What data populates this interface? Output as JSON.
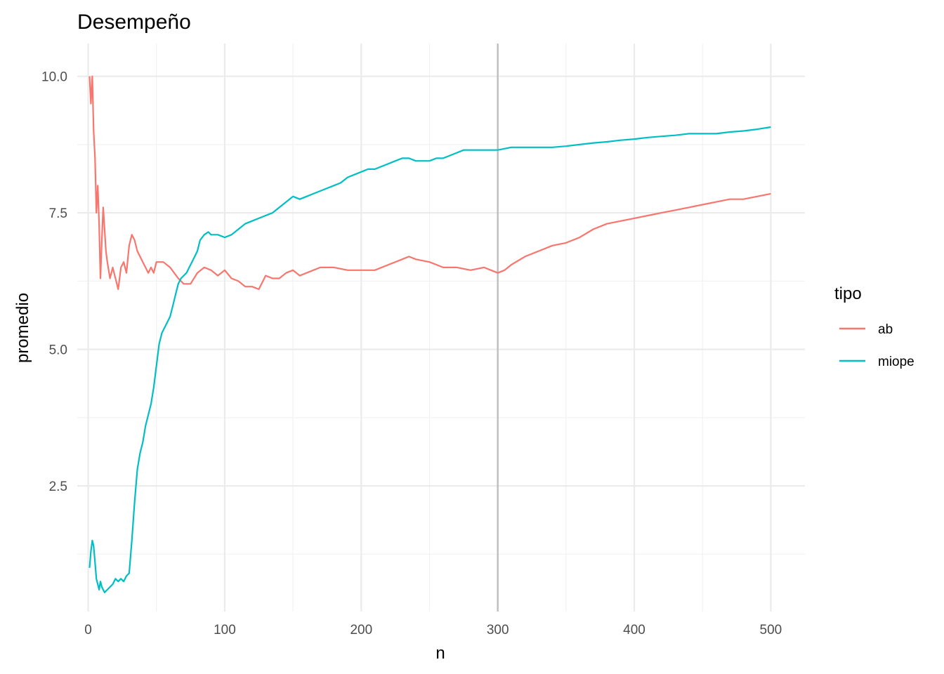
{
  "chart_data": {
    "type": "line",
    "title": "Desempeño",
    "xlabel": "n",
    "ylabel": "promedio",
    "xlim": [
      -8,
      525
    ],
    "ylim": [
      0.2,
      10.6
    ],
    "x_ticks": [
      0,
      100,
      200,
      300,
      400,
      500
    ],
    "x_tick_labels": [
      "0",
      "100",
      "200",
      "300",
      "400",
      "500"
    ],
    "y_ticks": [
      2.5,
      5.0,
      7.5,
      10.0
    ],
    "y_tick_labels": [
      "2.5",
      "5.0",
      "7.5",
      "10.0"
    ],
    "grid": true,
    "reference_line": {
      "x": 300,
      "color": "#bebebe"
    },
    "legend": {
      "title": "tipo",
      "placement": "right"
    },
    "series": [
      {
        "name": "ab",
        "color": "#F8766D",
        "points": [
          [
            1,
            10.0
          ],
          [
            2,
            9.5
          ],
          [
            3,
            10.0
          ],
          [
            4,
            9.0
          ],
          [
            5,
            8.5
          ],
          [
            6,
            7.5
          ],
          [
            7,
            8.0
          ],
          [
            8,
            7.3
          ],
          [
            9,
            6.3
          ],
          [
            10,
            7.0
          ],
          [
            11,
            7.6
          ],
          [
            12,
            7.2
          ],
          [
            13,
            6.8
          ],
          [
            14,
            6.6
          ],
          [
            16,
            6.3
          ],
          [
            18,
            6.5
          ],
          [
            20,
            6.3
          ],
          [
            22,
            6.1
          ],
          [
            24,
            6.5
          ],
          [
            26,
            6.6
          ],
          [
            28,
            6.4
          ],
          [
            30,
            6.9
          ],
          [
            32,
            7.1
          ],
          [
            34,
            7.0
          ],
          [
            36,
            6.8
          ],
          [
            38,
            6.7
          ],
          [
            40,
            6.6
          ],
          [
            42,
            6.5
          ],
          [
            44,
            6.4
          ],
          [
            46,
            6.5
          ],
          [
            48,
            6.4
          ],
          [
            50,
            6.6
          ],
          [
            55,
            6.6
          ],
          [
            60,
            6.5
          ],
          [
            63,
            6.4
          ],
          [
            66,
            6.3
          ],
          [
            70,
            6.2
          ],
          [
            75,
            6.2
          ],
          [
            80,
            6.4
          ],
          [
            85,
            6.5
          ],
          [
            90,
            6.45
          ],
          [
            95,
            6.35
          ],
          [
            100,
            6.45
          ],
          [
            105,
            6.3
          ],
          [
            110,
            6.25
          ],
          [
            115,
            6.15
          ],
          [
            120,
            6.15
          ],
          [
            125,
            6.1
          ],
          [
            130,
            6.35
          ],
          [
            135,
            6.3
          ],
          [
            140,
            6.3
          ],
          [
            145,
            6.4
          ],
          [
            150,
            6.45
          ],
          [
            155,
            6.35
          ],
          [
            160,
            6.4
          ],
          [
            170,
            6.5
          ],
          [
            180,
            6.5
          ],
          [
            190,
            6.45
          ],
          [
            200,
            6.45
          ],
          [
            210,
            6.45
          ],
          [
            220,
            6.55
          ],
          [
            230,
            6.65
          ],
          [
            235,
            6.7
          ],
          [
            240,
            6.65
          ],
          [
            250,
            6.6
          ],
          [
            255,
            6.55
          ],
          [
            260,
            6.5
          ],
          [
            270,
            6.5
          ],
          [
            280,
            6.45
          ],
          [
            290,
            6.5
          ],
          [
            295,
            6.45
          ],
          [
            300,
            6.4
          ],
          [
            305,
            6.45
          ],
          [
            310,
            6.55
          ],
          [
            320,
            6.7
          ],
          [
            330,
            6.8
          ],
          [
            340,
            6.9
          ],
          [
            350,
            6.95
          ],
          [
            360,
            7.05
          ],
          [
            370,
            7.2
          ],
          [
            380,
            7.3
          ],
          [
            390,
            7.35
          ],
          [
            400,
            7.4
          ],
          [
            410,
            7.45
          ],
          [
            420,
            7.5
          ],
          [
            430,
            7.55
          ],
          [
            440,
            7.6
          ],
          [
            450,
            7.65
          ],
          [
            460,
            7.7
          ],
          [
            470,
            7.75
          ],
          [
            480,
            7.75
          ],
          [
            490,
            7.8
          ],
          [
            500,
            7.85
          ]
        ]
      },
      {
        "name": "miope",
        "color": "#00BFC4",
        "points": [
          [
            1,
            1.0
          ],
          [
            2,
            1.3
          ],
          [
            3,
            1.5
          ],
          [
            4,
            1.4
          ],
          [
            5,
            1.1
          ],
          [
            6,
            0.8
          ],
          [
            7,
            0.7
          ],
          [
            8,
            0.6
          ],
          [
            9,
            0.75
          ],
          [
            10,
            0.65
          ],
          [
            11,
            0.6
          ],
          [
            12,
            0.55
          ],
          [
            14,
            0.6
          ],
          [
            16,
            0.65
          ],
          [
            18,
            0.7
          ],
          [
            20,
            0.8
          ],
          [
            22,
            0.75
          ],
          [
            24,
            0.8
          ],
          [
            26,
            0.75
          ],
          [
            28,
            0.85
          ],
          [
            30,
            0.9
          ],
          [
            32,
            1.5
          ],
          [
            34,
            2.2
          ],
          [
            36,
            2.8
          ],
          [
            38,
            3.1
          ],
          [
            40,
            3.3
          ],
          [
            42,
            3.6
          ],
          [
            44,
            3.8
          ],
          [
            46,
            4.0
          ],
          [
            48,
            4.3
          ],
          [
            50,
            4.7
          ],
          [
            52,
            5.1
          ],
          [
            54,
            5.3
          ],
          [
            56,
            5.4
          ],
          [
            58,
            5.5
          ],
          [
            60,
            5.6
          ],
          [
            62,
            5.8
          ],
          [
            64,
            6.0
          ],
          [
            66,
            6.2
          ],
          [
            68,
            6.3
          ],
          [
            70,
            6.35
          ],
          [
            72,
            6.4
          ],
          [
            74,
            6.5
          ],
          [
            76,
            6.6
          ],
          [
            78,
            6.7
          ],
          [
            80,
            6.8
          ],
          [
            82,
            7.0
          ],
          [
            85,
            7.1
          ],
          [
            88,
            7.15
          ],
          [
            90,
            7.1
          ],
          [
            95,
            7.1
          ],
          [
            100,
            7.05
          ],
          [
            105,
            7.1
          ],
          [
            110,
            7.2
          ],
          [
            115,
            7.3
          ],
          [
            120,
            7.35
          ],
          [
            125,
            7.4
          ],
          [
            130,
            7.45
          ],
          [
            135,
            7.5
          ],
          [
            140,
            7.6
          ],
          [
            145,
            7.7
          ],
          [
            150,
            7.8
          ],
          [
            155,
            7.75
          ],
          [
            160,
            7.8
          ],
          [
            165,
            7.85
          ],
          [
            170,
            7.9
          ],
          [
            175,
            7.95
          ],
          [
            180,
            8.0
          ],
          [
            185,
            8.05
          ],
          [
            190,
            8.15
          ],
          [
            195,
            8.2
          ],
          [
            200,
            8.25
          ],
          [
            205,
            8.3
          ],
          [
            210,
            8.3
          ],
          [
            215,
            8.35
          ],
          [
            220,
            8.4
          ],
          [
            225,
            8.45
          ],
          [
            230,
            8.5
          ],
          [
            235,
            8.5
          ],
          [
            240,
            8.45
          ],
          [
            245,
            8.45
          ],
          [
            250,
            8.45
          ],
          [
            255,
            8.5
          ],
          [
            260,
            8.5
          ],
          [
            265,
            8.55
          ],
          [
            270,
            8.6
          ],
          [
            275,
            8.65
          ],
          [
            280,
            8.65
          ],
          [
            285,
            8.65
          ],
          [
            290,
            8.65
          ],
          [
            295,
            8.65
          ],
          [
            300,
            8.65
          ],
          [
            310,
            8.7
          ],
          [
            320,
            8.7
          ],
          [
            330,
            8.7
          ],
          [
            340,
            8.7
          ],
          [
            350,
            8.72
          ],
          [
            360,
            8.75
          ],
          [
            370,
            8.78
          ],
          [
            380,
            8.8
          ],
          [
            390,
            8.83
          ],
          [
            400,
            8.85
          ],
          [
            410,
            8.88
          ],
          [
            420,
            8.9
          ],
          [
            430,
            8.92
          ],
          [
            440,
            8.95
          ],
          [
            450,
            8.95
          ],
          [
            460,
            8.95
          ],
          [
            470,
            8.98
          ],
          [
            480,
            9.0
          ],
          [
            490,
            9.03
          ],
          [
            500,
            9.07
          ]
        ]
      }
    ]
  }
}
